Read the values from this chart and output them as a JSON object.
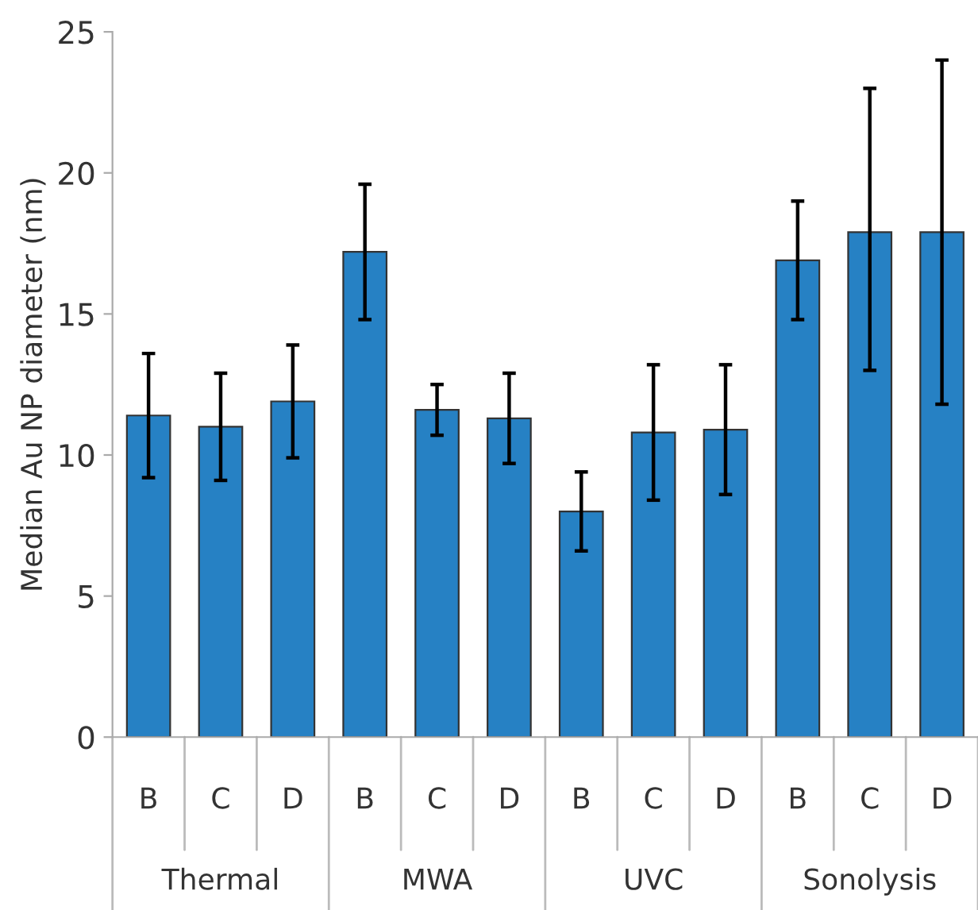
{
  "chart_data": {
    "type": "bar",
    "ylabel": "Median Au NP diameter (nm)",
    "categories": [
      "B",
      "C",
      "D",
      "B",
      "C",
      "D",
      "B",
      "C",
      "D",
      "B",
      "C",
      "D"
    ],
    "values": [
      11.4,
      11.0,
      11.9,
      17.2,
      11.6,
      11.3,
      8.0,
      10.8,
      10.9,
      16.9,
      17.9,
      17.9
    ],
    "errors": [
      [
        9.2,
        13.6
      ],
      [
        9.1,
        12.9
      ],
      [
        9.9,
        13.9
      ],
      [
        14.8,
        19.6
      ],
      [
        10.7,
        12.5
      ],
      [
        9.7,
        12.9
      ],
      [
        6.6,
        9.4
      ],
      [
        8.4,
        13.2
      ],
      [
        8.6,
        13.2
      ],
      [
        14.8,
        19.0
      ],
      [
        13.0,
        23.0
      ],
      [
        11.8,
        24.0
      ]
    ],
    "color": "#2681c4",
    "annotations": [
      "Thermal",
      "MWA",
      "UVC",
      "Sonolysis"
    ],
    "ylim": [
      0,
      25
    ],
    "yticks": [
      0,
      5,
      10,
      15,
      20,
      25
    ],
    "grid": false,
    "legend": false
  }
}
